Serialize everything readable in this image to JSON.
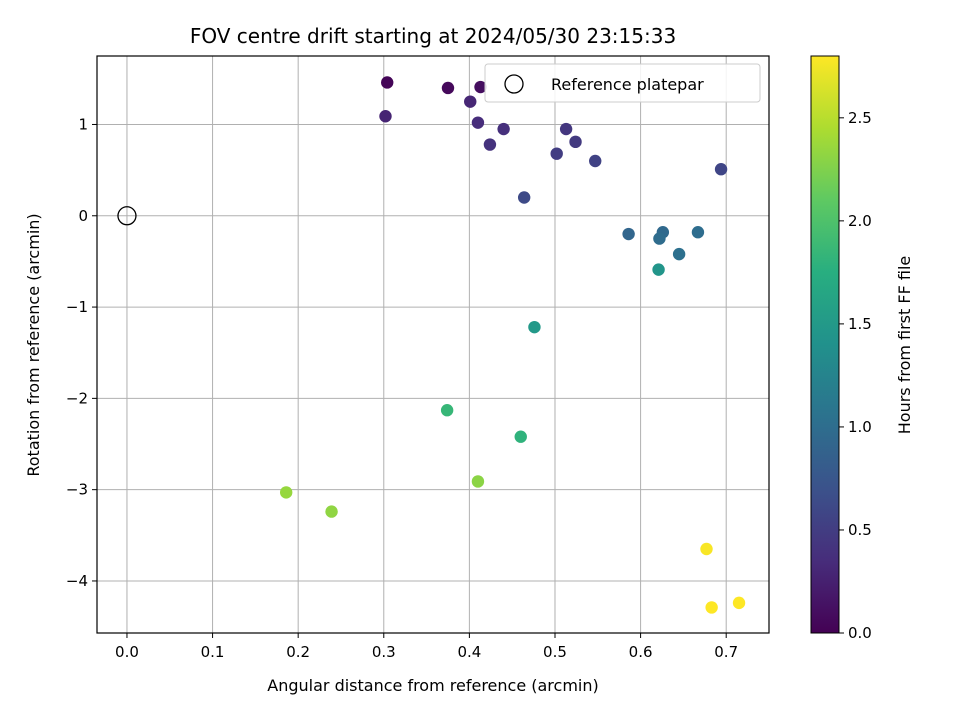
{
  "chart_data": {
    "type": "scatter",
    "title": "FOV centre drift starting at 2024/05/30 23:15:33",
    "xlabel": "Angular distance from reference (arcmin)",
    "ylabel": "Rotation from reference (arcmin)",
    "xlim": [
      -0.035,
      0.75
    ],
    "ylim": [
      -4.57,
      1.75
    ],
    "xticks": [
      0.0,
      0.1,
      0.2,
      0.3,
      0.4,
      0.5,
      0.6,
      0.7
    ],
    "xtick_labels": [
      "0.0",
      "0.1",
      "0.2",
      "0.3",
      "0.4",
      "0.5",
      "0.6",
      "0.7"
    ],
    "yticks": [
      1,
      0,
      -1,
      -2,
      -3,
      -4
    ],
    "ytick_labels": [
      "1",
      "0",
      "−1",
      "−2",
      "−3",
      "−4"
    ],
    "grid": true,
    "colormap": "viridis",
    "colorbar": {
      "label": "Hours from first FF file",
      "range": [
        0,
        2.8
      ],
      "ticks": [
        0.0,
        0.5,
        1.0,
        1.5,
        2.0,
        2.5
      ],
      "tick_labels": [
        "0.0",
        "0.5",
        "1.0",
        "1.5",
        "2.0",
        "2.5"
      ]
    },
    "legend": {
      "placement": "top-right",
      "entries": [
        "Reference platepar"
      ]
    },
    "reference_point": {
      "x": 0.0,
      "y": 0.0
    },
    "points": [
      {
        "x": 0.304,
        "y": 1.46,
        "hours": 0.03
      },
      {
        "x": 0.375,
        "y": 1.4,
        "hours": 0.06
      },
      {
        "x": 0.413,
        "y": 1.41,
        "hours": 0.1
      },
      {
        "x": 0.302,
        "y": 1.09,
        "hours": 0.28
      },
      {
        "x": 0.401,
        "y": 1.25,
        "hours": 0.3
      },
      {
        "x": 0.41,
        "y": 1.02,
        "hours": 0.35
      },
      {
        "x": 0.44,
        "y": 0.95,
        "hours": 0.38
      },
      {
        "x": 0.424,
        "y": 0.78,
        "hours": 0.4
      },
      {
        "x": 0.513,
        "y": 0.95,
        "hours": 0.44
      },
      {
        "x": 0.524,
        "y": 0.81,
        "hours": 0.47
      },
      {
        "x": 0.502,
        "y": 0.68,
        "hours": 0.5
      },
      {
        "x": 0.547,
        "y": 0.6,
        "hours": 0.55
      },
      {
        "x": 0.694,
        "y": 0.51,
        "hours": 0.58
      },
      {
        "x": 0.464,
        "y": 0.2,
        "hours": 0.62
      },
      {
        "x": 0.586,
        "y": -0.2,
        "hours": 0.92
      },
      {
        "x": 0.626,
        "y": -0.18,
        "hours": 0.95
      },
      {
        "x": 0.622,
        "y": -0.25,
        "hours": 0.98
      },
      {
        "x": 0.667,
        "y": -0.18,
        "hours": 1.0
      },
      {
        "x": 0.645,
        "y": -0.42,
        "hours": 1.03
      },
      {
        "x": 0.621,
        "y": -0.59,
        "hours": 1.45
      },
      {
        "x": 0.476,
        "y": -1.22,
        "hours": 1.5
      },
      {
        "x": 0.374,
        "y": -2.13,
        "hours": 1.85
      },
      {
        "x": 0.46,
        "y": -2.42,
        "hours": 1.8
      },
      {
        "x": 0.41,
        "y": -2.91,
        "hours": 2.3
      },
      {
        "x": 0.186,
        "y": -3.03,
        "hours": 2.35
      },
      {
        "x": 0.239,
        "y": -3.24,
        "hours": 2.32
      },
      {
        "x": 0.677,
        "y": -3.65,
        "hours": 2.78
      },
      {
        "x": 0.683,
        "y": -4.29,
        "hours": 2.8
      },
      {
        "x": 0.715,
        "y": -4.24,
        "hours": 2.8
      }
    ]
  }
}
